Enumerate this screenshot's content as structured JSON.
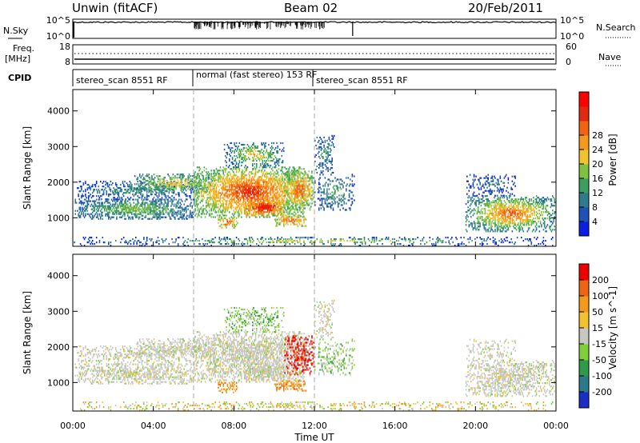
{
  "header": {
    "site": "Unwin (fitACF)",
    "beam": "Beam 02",
    "date": "20/Feb/2011"
  },
  "strips": {
    "nsky_label": "N.Sky",
    "nsearch_label": "N.Search",
    "left_ticks": [
      "10^5",
      "10^0"
    ],
    "right_ticks": [
      "10^5",
      "10^0"
    ],
    "freq_label_1": "Freq.",
    "freq_label_2": "[MHz]",
    "freq_ticks": [
      "18",
      "8"
    ],
    "nave_label": "Nave",
    "nave_ticks": [
      "60",
      "0"
    ],
    "cpid_label": "CPID"
  },
  "modes": [
    {
      "label": "stereo_scan 8551 RF",
      "start_hour": 0
    },
    {
      "label": "normal (fast stereo) 153 RF",
      "start_hour": 6
    },
    {
      "label": "stereo_scan 8551 RF",
      "start_hour": 12
    }
  ],
  "chart_data": [
    {
      "type": "heatmap",
      "name": "power",
      "ylabel": "Slant Range [km]",
      "xlabel": "Time UT",
      "x_ticks": [
        "00:00",
        "04:00",
        "08:00",
        "12:00",
        "16:00",
        "20:00",
        "00:00"
      ],
      "xlim_hours": [
        0,
        24
      ],
      "y_ticks": [
        1000,
        2000,
        3000,
        4000
      ],
      "ylim": [
        200,
        4600
      ],
      "colorbar": {
        "label": "Power [dB]",
        "ticks": [
          4,
          8,
          12,
          16,
          20,
          24,
          28
        ],
        "colors": [
          "#0a1fe0",
          "#1e52b4",
          "#2f7a8c",
          "#3c9e5e",
          "#7fc242",
          "#f1c232",
          "#f39a1e",
          "#ee6414",
          "#e12a10",
          "#ff0000"
        ]
      }
    },
    {
      "type": "heatmap",
      "name": "velocity",
      "ylabel": "Slant Range [km]",
      "xlabel": "Time UT",
      "x_ticks": [
        "00:00",
        "04:00",
        "08:00",
        "12:00",
        "16:00",
        "20:00",
        "00:00"
      ],
      "xlim_hours": [
        0,
        24
      ],
      "y_ticks": [
        1000,
        2000,
        3000,
        4000
      ],
      "ylim": [
        200,
        4600
      ],
      "colorbar": {
        "label": "Velocity [m s^-1]",
        "ticks": [
          "200",
          "100",
          "50",
          "15",
          "-15",
          "-50",
          "-100",
          "-200"
        ],
        "colors": [
          "#1b2fc4",
          "#2a7a8a",
          "#2f9a4a",
          "#7fcf3a",
          "#c8c8c0",
          "#f2c232",
          "#f39a1e",
          "#ee6414",
          "#ee0000"
        ]
      }
    }
  ],
  "xlabel": "Time UT",
  "clusters": [
    {
      "t0": 0.1,
      "t1": 6,
      "r0": 950,
      "r1": 1500,
      "density": 0.85,
      "pcore": [
        8,
        16
      ],
      "vmix": "grey"
    },
    {
      "t0": 0.2,
      "t1": 6,
      "r0": 1500,
      "r1": 2000,
      "density": 0.5,
      "pcore": [
        6,
        12
      ],
      "vmix": "grey"
    },
    {
      "t0": 3,
      "t1": 7,
      "r0": 1700,
      "r1": 2200,
      "density": 0.7,
      "pcore": [
        10,
        20
      ],
      "vmix": "grey"
    },
    {
      "t0": 6,
      "t1": 11.5,
      "r0": 1000,
      "r1": 2400,
      "density": 0.9,
      "pcore": [
        14,
        28
      ],
      "vmix": "grey"
    },
    {
      "t0": 7.5,
      "t1": 10.5,
      "r0": 2400,
      "r1": 3100,
      "density": 0.55,
      "pcore": [
        8,
        20
      ],
      "vmix": "green"
    },
    {
      "t0": 8.5,
      "t1": 10.5,
      "r0": 1050,
      "r1": 1500,
      "density": 0.95,
      "pcore": [
        20,
        30
      ],
      "vmix": "grey"
    },
    {
      "t0": 10.5,
      "t1": 12,
      "r0": 1200,
      "r1": 2300,
      "density": 0.8,
      "pcore": [
        14,
        26
      ],
      "vmix": "red"
    },
    {
      "t0": 10,
      "t1": 11.6,
      "r0": 750,
      "r1": 1050,
      "density": 0.85,
      "pcore": [
        16,
        26
      ],
      "vmix": "orange"
    },
    {
      "t0": 7.2,
      "t1": 8.2,
      "r0": 700,
      "r1": 1000,
      "density": 0.8,
      "pcore": [
        16,
        26
      ],
      "vmix": "orange"
    },
    {
      "t0": 12,
      "t1": 14,
      "r0": 1200,
      "r1": 2200,
      "density": 0.45,
      "pcore": [
        6,
        14
      ],
      "vmix": "green"
    },
    {
      "t0": 12,
      "t1": 13,
      "r0": 2200,
      "r1": 3300,
      "density": 0.4,
      "pcore": [
        6,
        12
      ],
      "vmix": "grey"
    },
    {
      "t0": 19.5,
      "t1": 24,
      "r0": 600,
      "r1": 1600,
      "density": 0.75,
      "pcore": [
        10,
        26
      ],
      "vmix": "grey"
    },
    {
      "t0": 19.5,
      "t1": 22,
      "r0": 1600,
      "r1": 2200,
      "density": 0.35,
      "pcore": [
        4,
        10
      ],
      "vmix": "grey"
    },
    {
      "t0": 0,
      "t1": 24,
      "r0": 200,
      "r1": 450,
      "density": 0.35,
      "pcore": [
        4,
        20
      ],
      "vmix": "ground"
    }
  ]
}
